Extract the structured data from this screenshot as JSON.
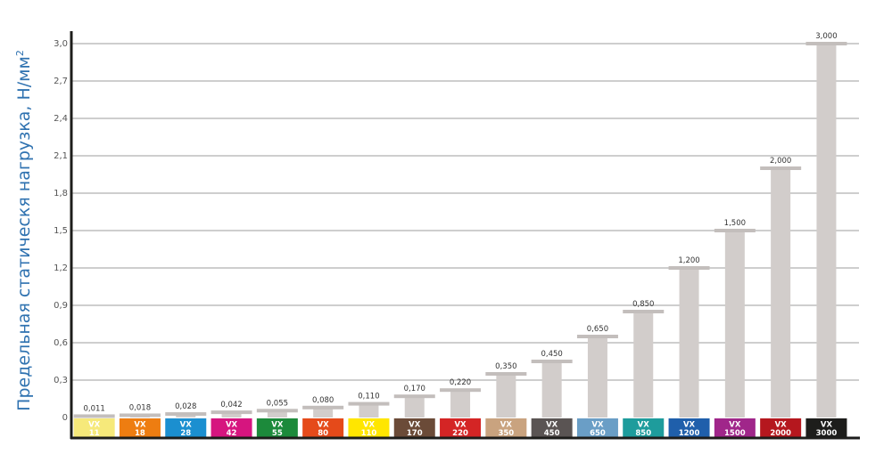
{
  "chart_data": {
    "type": "bar",
    "ylabel": "Предельная статическя нагрузка, Н/мм",
    "ylabel_superscript": "2",
    "ylim": [
      0,
      3.0
    ],
    "y_ticks": [
      "0",
      "0,3",
      "0,6",
      "0,9",
      "1,2",
      "1,5",
      "1,8",
      "2,1",
      "2,4",
      "2,7",
      "3,0"
    ],
    "grid": true,
    "categories": [
      {
        "line1": "VX",
        "line2": "11",
        "color": "#f6e97a",
        "text_color": "#ffffff"
      },
      {
        "line1": "VX",
        "line2": "18",
        "color": "#ee7d11",
        "text_color": "#ffffff"
      },
      {
        "line1": "VX",
        "line2": "28",
        "color": "#1b8fd0",
        "text_color": "#ffffff"
      },
      {
        "line1": "VX",
        "line2": "42",
        "color": "#d6157f",
        "text_color": "#ffffff"
      },
      {
        "line1": "VX",
        "line2": "55",
        "color": "#1c8a3b",
        "text_color": "#ffffff"
      },
      {
        "line1": "VX",
        "line2": "80",
        "color": "#e54a1a",
        "text_color": "#ffffff"
      },
      {
        "line1": "VX",
        "line2": "110",
        "color": "#ffe600",
        "text_color": "#ffffff"
      },
      {
        "line1": "VX",
        "line2": "170",
        "color": "#6b4b38",
        "text_color": "#ffffff"
      },
      {
        "line1": "VX",
        "line2": "220",
        "color": "#d42525",
        "text_color": "#ffffff"
      },
      {
        "line1": "VX",
        "line2": "350",
        "color": "#c9a37f",
        "text_color": "#ffffff"
      },
      {
        "line1": "VX",
        "line2": "450",
        "color": "#5a5453",
        "text_color": "#ffffff"
      },
      {
        "line1": "VX",
        "line2": "650",
        "color": "#6a9ec6",
        "text_color": "#ffffff"
      },
      {
        "line1": "VX",
        "line2": "850",
        "color": "#1e9c9c",
        "text_color": "#ffffff"
      },
      {
        "line1": "VX",
        "line2": "1200",
        "color": "#1f5fab",
        "text_color": "#ffffff"
      },
      {
        "line1": "VX",
        "line2": "1500",
        "color": "#a0268a",
        "text_color": "#ffffff"
      },
      {
        "line1": "VX",
        "line2": "2000",
        "color": "#b5171e",
        "text_color": "#ffffff"
      },
      {
        "line1": "VX",
        "line2": "3000",
        "color": "#1d1d1b",
        "text_color": "#ffffff"
      }
    ],
    "values": [
      0.011,
      0.018,
      0.028,
      0.042,
      0.055,
      0.08,
      0.11,
      0.17,
      0.22,
      0.35,
      0.45,
      0.65,
      0.85,
      1.2,
      1.5,
      2.0,
      3.0
    ],
    "value_labels": [
      "0,011",
      "0,018",
      "0,028",
      "0,042",
      "0,055",
      "0,080",
      "0,110",
      "0,170",
      "0,220",
      "0,350",
      "0,450",
      "0,650",
      "0,850",
      "1,200",
      "1,500",
      "2,000",
      "3,000"
    ],
    "colors": {
      "bar": "#d2cdcb",
      "cap": "#c3bebc",
      "grid": "#9d9d9d",
      "axis": "#1d1d1b",
      "tick_text": "#555555",
      "value_text": "#333333",
      "ylabel": "#2f72b0"
    }
  }
}
